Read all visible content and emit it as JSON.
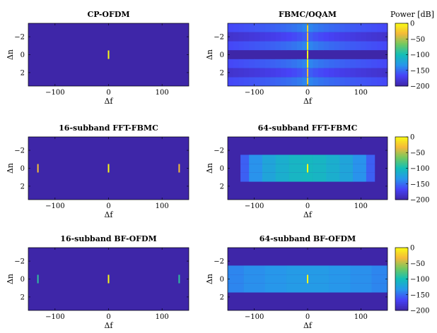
{
  "colorbar_label": "Power [dB]",
  "colormap": [
    "#3e26a8",
    "#4743f8",
    "#2797eb",
    "#13beb7",
    "#73c960",
    "#f5b93a",
    "#f9fb15"
  ],
  "chart_data": [
    {
      "type": "heatmap",
      "title": "CP-OFDM",
      "xlabel": "Δf",
      "ylabel": "Δn",
      "xlim": [
        -150,
        150
      ],
      "ylim": [
        -3.5,
        3.5
      ],
      "xticks": [
        -100,
        0,
        100
      ],
      "xtick_labels": [
        "−100",
        "0",
        "100"
      ],
      "yticks": [
        -2,
        0,
        2
      ],
      "ytick_labels": [
        "−2",
        "0",
        "2"
      ],
      "y_reversed": true,
      "background_db": -200,
      "cells": [
        {
          "df": 0,
          "dn": 0,
          "db": 0
        }
      ],
      "bands": []
    },
    {
      "type": "heatmap",
      "title": "FBMC/OQAM",
      "xlabel": "Δf",
      "ylabel": "Δn",
      "xlim": [
        -150,
        150
      ],
      "ylim": [
        -3.5,
        3.5
      ],
      "xticks": [
        -100,
        0,
        100
      ],
      "xtick_labels": [
        "−100",
        "0",
        "100"
      ],
      "yticks": [
        -2,
        0,
        2
      ],
      "ytick_labels": [
        "−2",
        "0",
        "2"
      ],
      "y_reversed": true,
      "background_db": -200,
      "bands": [
        {
          "df_range": [
            -150,
            150
          ],
          "dn_rows": [
            -3,
            -1,
            1,
            3
          ],
          "profile": "decay",
          "peak_db": -135,
          "edge_db": -165,
          "center_width": 12
        },
        {
          "df_range": [
            -150,
            150
          ],
          "dn_rows": [
            -2,
            2
          ],
          "profile": "decay",
          "peak_db": -150,
          "edge_db": -185,
          "center_width": 6
        }
      ],
      "cells": [
        {
          "df": 0,
          "dn": -3,
          "db": -20
        },
        {
          "df": 0,
          "dn": -2,
          "db": -30
        },
        {
          "df": 0,
          "dn": -1,
          "db": -5
        },
        {
          "df": 0,
          "dn": 0,
          "db": 0
        },
        {
          "df": 0,
          "dn": 1,
          "db": -5
        },
        {
          "df": 0,
          "dn": 2,
          "db": -30
        },
        {
          "df": 0,
          "dn": 3,
          "db": -20
        }
      ],
      "colorbar": {
        "label": "Power [dB]",
        "range": [
          -200,
          0
        ],
        "ticks": [
          0,
          -50,
          -100,
          -150,
          -200
        ],
        "tick_labels": [
          "0",
          "−50",
          "−100",
          "−150",
          "−200"
        ]
      }
    },
    {
      "type": "heatmap",
      "title": "16-subband FFT-FBMC",
      "xlabel": "Δf",
      "ylabel": "Δn",
      "xlim": [
        -150,
        150
      ],
      "ylim": [
        -3.5,
        3.5
      ],
      "xticks": [
        -100,
        0,
        100
      ],
      "xtick_labels": [
        "−100",
        "0",
        "100"
      ],
      "yticks": [
        -2,
        0,
        2
      ],
      "ytick_labels": [
        "−2",
        "0",
        "2"
      ],
      "y_reversed": true,
      "background_db": -200,
      "cells": [
        {
          "df": -132,
          "dn": 0,
          "db": -30
        },
        {
          "df": 0,
          "dn": 0,
          "db": 0
        },
        {
          "df": 132,
          "dn": 0,
          "db": -30
        }
      ],
      "bands": []
    },
    {
      "type": "heatmap",
      "title": "64-subband FFT-FBMC",
      "xlabel": "Δf",
      "ylabel": "Δn",
      "xlim": [
        -150,
        150
      ],
      "ylim": [
        -3.5,
        3.5
      ],
      "xticks": [
        -100,
        0,
        100
      ],
      "xtick_labels": [
        "−100",
        "0",
        "100"
      ],
      "yticks": [
        -2,
        0,
        2
      ],
      "ytick_labels": [
        "−2",
        "0",
        "2"
      ],
      "y_reversed": true,
      "background_db": -200,
      "blocks": [
        {
          "df_range": [
            -126,
            126
          ],
          "dn_rows": [
            -1,
            0,
            1
          ],
          "steps": [
            {
              "df": [
                -126,
                -110
              ],
              "db": -155
            },
            {
              "df": [
                -110,
                -85
              ],
              "db": -135
            },
            {
              "df": [
                -85,
                -60
              ],
              "db": -122
            },
            {
              "df": [
                -60,
                -35
              ],
              "db": -114
            },
            {
              "df": [
                -35,
                -10
              ],
              "db": -108
            },
            {
              "df": [
                -10,
                10
              ],
              "db": -105
            },
            {
              "df": [
                10,
                35
              ],
              "db": -108
            },
            {
              "df": [
                35,
                60
              ],
              "db": -114
            },
            {
              "df": [
                60,
                85
              ],
              "db": -122
            },
            {
              "df": [
                85,
                110
              ],
              "db": -135
            },
            {
              "df": [
                110,
                126
              ],
              "db": -155
            }
          ]
        }
      ],
      "cells": [
        {
          "df": 0,
          "dn": 0,
          "db": 0
        }
      ],
      "bands": [],
      "colorbar": {
        "label": "",
        "range": [
          -200,
          0
        ],
        "ticks": [
          0,
          -50,
          -100,
          -150,
          -200
        ],
        "tick_labels": [
          "0",
          "−50",
          "−100",
          "−150",
          "−200"
        ]
      }
    },
    {
      "type": "heatmap",
      "title": "16-subband BF-OFDM",
      "xlabel": "Δf",
      "ylabel": "Δn",
      "xlim": [
        -150,
        150
      ],
      "ylim": [
        -3.5,
        3.5
      ],
      "xticks": [
        -100,
        0,
        100
      ],
      "xtick_labels": [
        "−100",
        "0",
        "100"
      ],
      "yticks": [
        -2,
        0,
        2
      ],
      "ytick_labels": [
        "−2",
        "0",
        "2"
      ],
      "y_reversed": true,
      "background_db": -200,
      "cells": [
        {
          "df": -132,
          "dn": 0,
          "db": -90
        },
        {
          "df": 0,
          "dn": 0,
          "db": 0
        },
        {
          "df": 132,
          "dn": 0,
          "db": -90
        }
      ],
      "bands": []
    },
    {
      "type": "heatmap",
      "title": "64-subband BF-OFDM",
      "xlabel": "Δf",
      "ylabel": "Δn",
      "xlim": [
        -150,
        150
      ],
      "ylim": [
        -3.5,
        3.5
      ],
      "xticks": [
        -100,
        0,
        100
      ],
      "xtick_labels": [
        "−100",
        "0",
        "100"
      ],
      "yticks": [
        -2,
        0,
        2
      ],
      "ytick_labels": [
        "−2",
        "0",
        "2"
      ],
      "y_reversed": true,
      "background_db": -200,
      "blocks": [
        {
          "df_range": [
            -150,
            150
          ],
          "dn_rows": [
            -1,
            0,
            1
          ],
          "steps": [
            {
              "df": [
                -150,
                -120
              ],
              "db": -140
            },
            {
              "df": [
                -120,
                -80
              ],
              "db": -136
            },
            {
              "df": [
                -80,
                -40
              ],
              "db": -133
            },
            {
              "df": [
                -40,
                40
              ],
              "db": -130
            },
            {
              "df": [
                40,
                80
              ],
              "db": -133
            },
            {
              "df": [
                80,
                120
              ],
              "db": -136
            },
            {
              "df": [
                120,
                150
              ],
              "db": -140
            }
          ]
        }
      ],
      "cells": [
        {
          "df": 0,
          "dn": 0,
          "db": 0
        }
      ],
      "bands": [],
      "colorbar": {
        "label": "",
        "range": [
          -200,
          0
        ],
        "ticks": [
          0,
          -50,
          -100,
          -150,
          -200
        ],
        "tick_labels": [
          "0",
          "−50",
          "−100",
          "−150",
          "−200"
        ]
      }
    }
  ]
}
